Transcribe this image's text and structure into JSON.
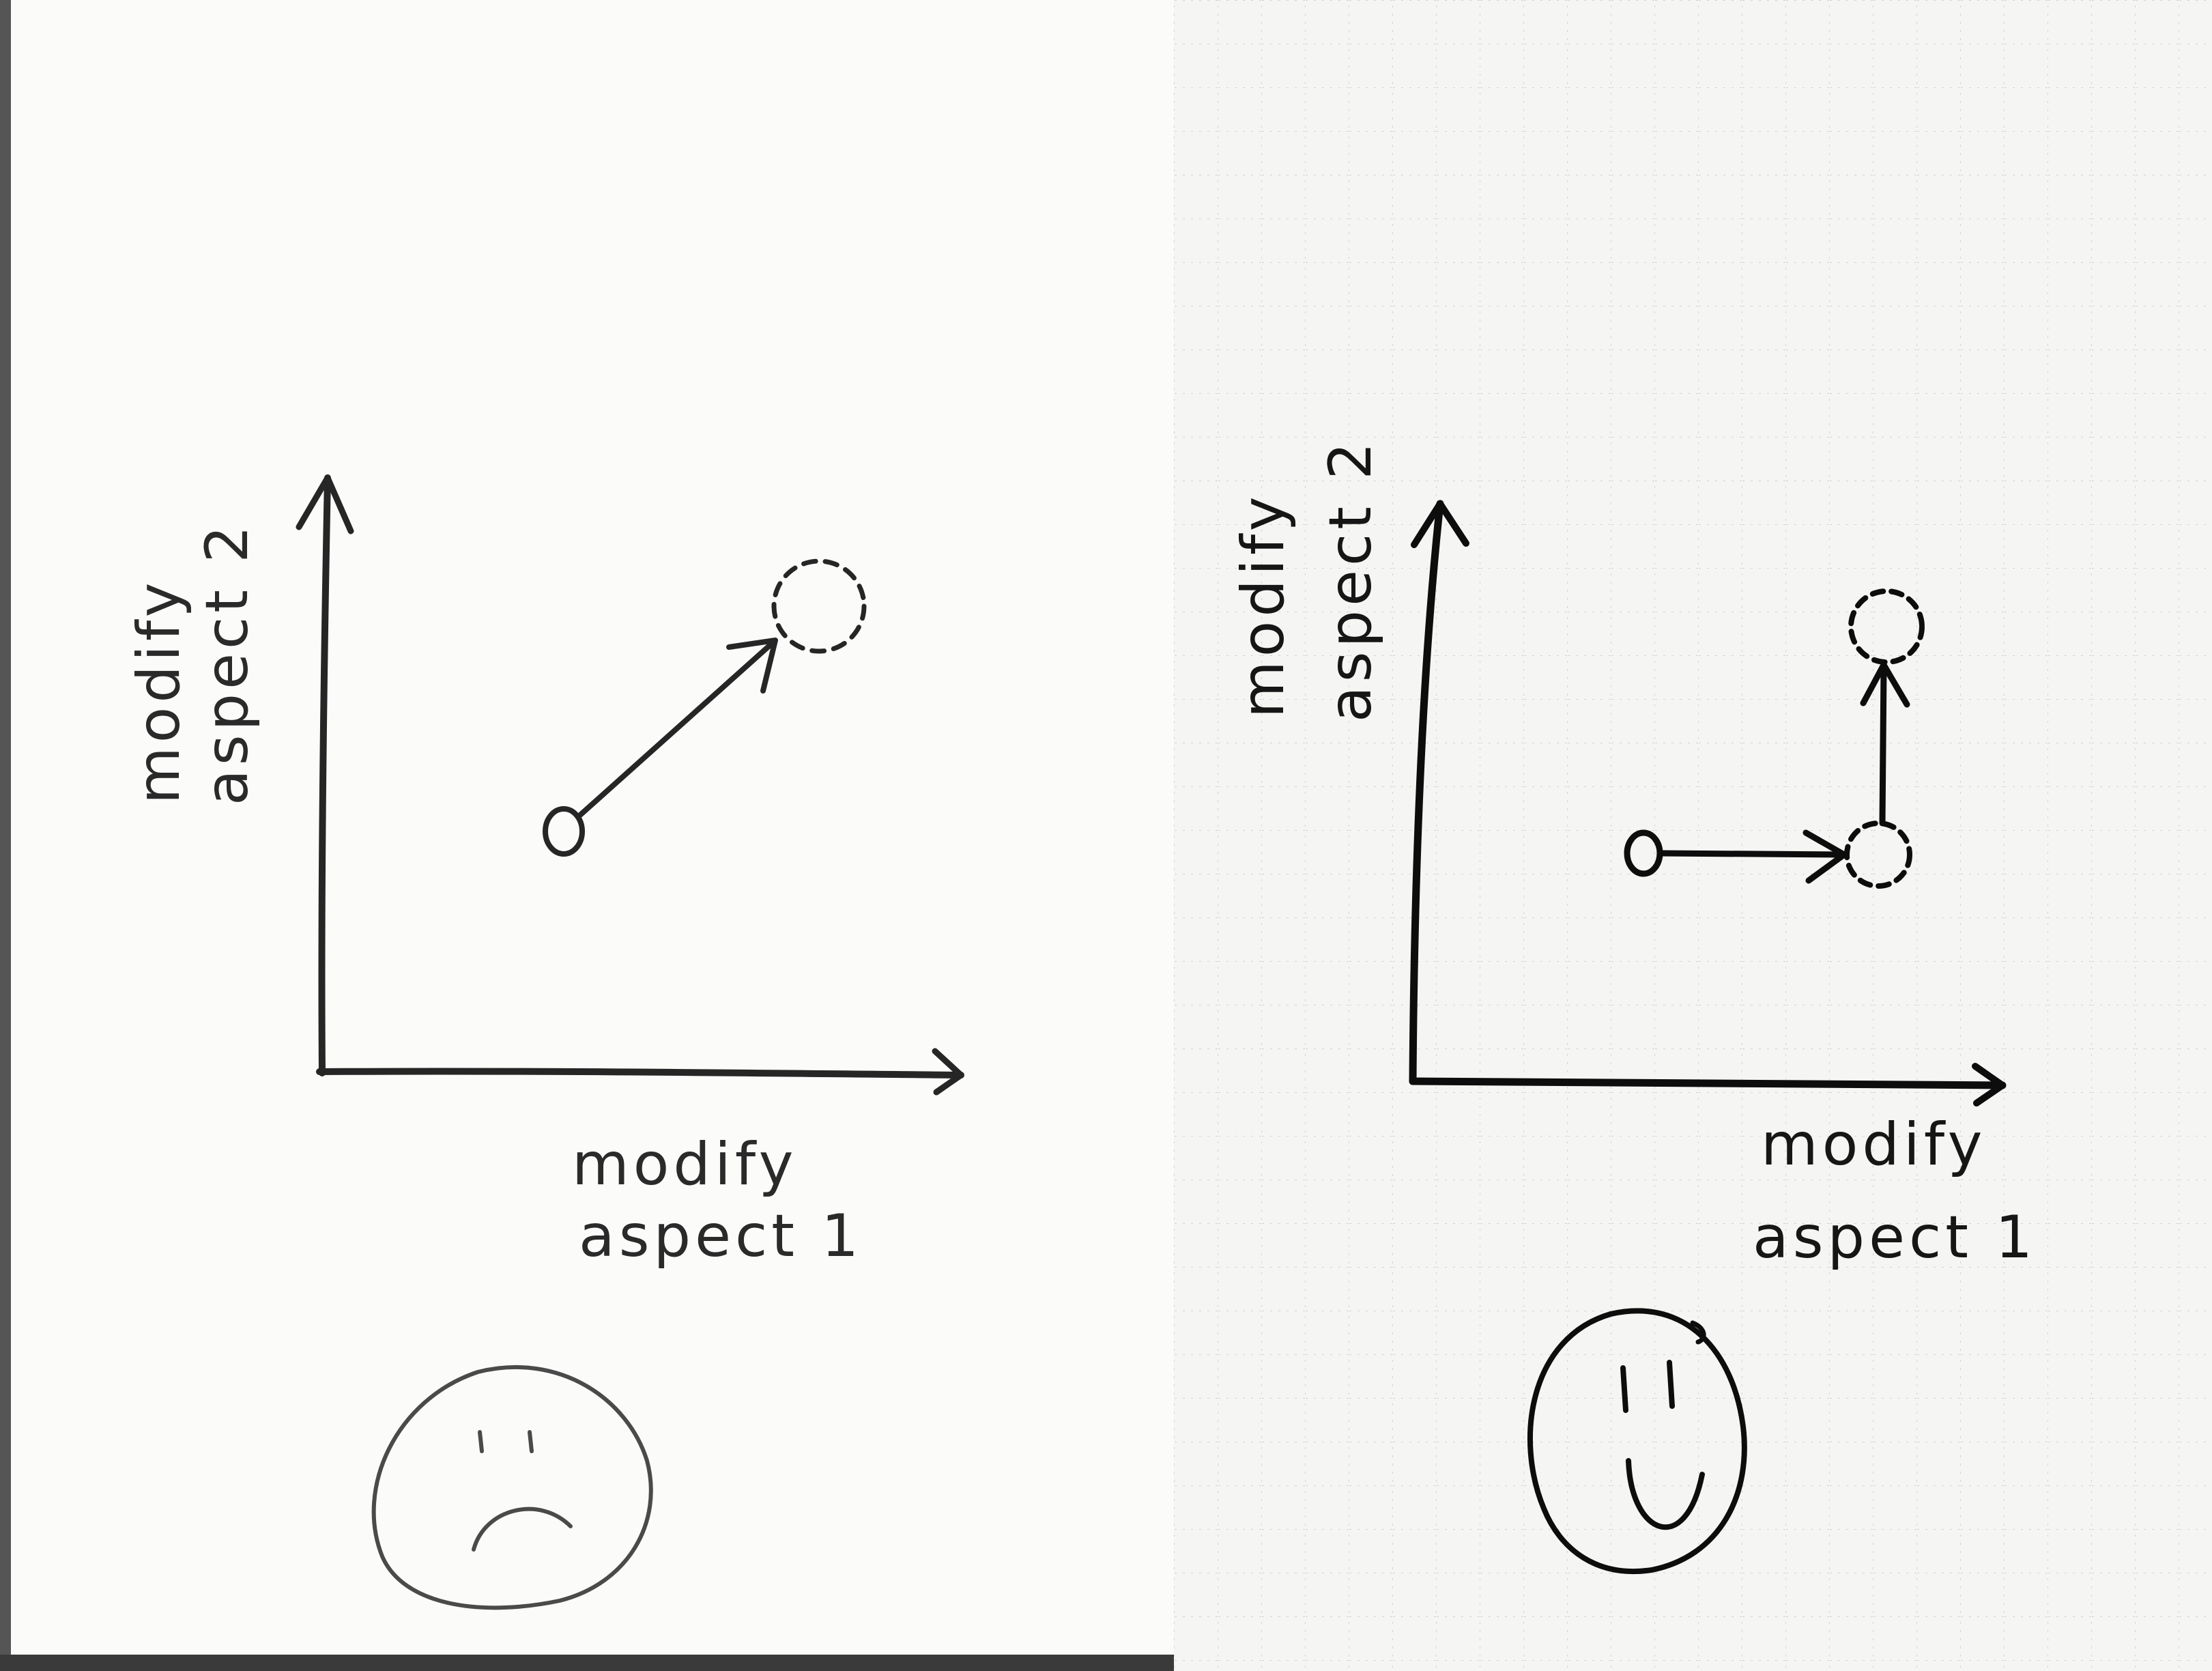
{
  "diagrams": [
    {
      "id": "left",
      "x_axis_label": {
        "line1": "modify",
        "line2": "aspect 1"
      },
      "y_axis_label": {
        "line1": "modify",
        "line2": "aspect 2"
      },
      "face": "frowning"
    },
    {
      "id": "right",
      "x_axis_label": {
        "line1": "modify",
        "line2": "aspect 1"
      },
      "y_axis_label": {
        "line1": "modify",
        "line2": "aspect 2"
      },
      "face": "smiling"
    }
  ]
}
